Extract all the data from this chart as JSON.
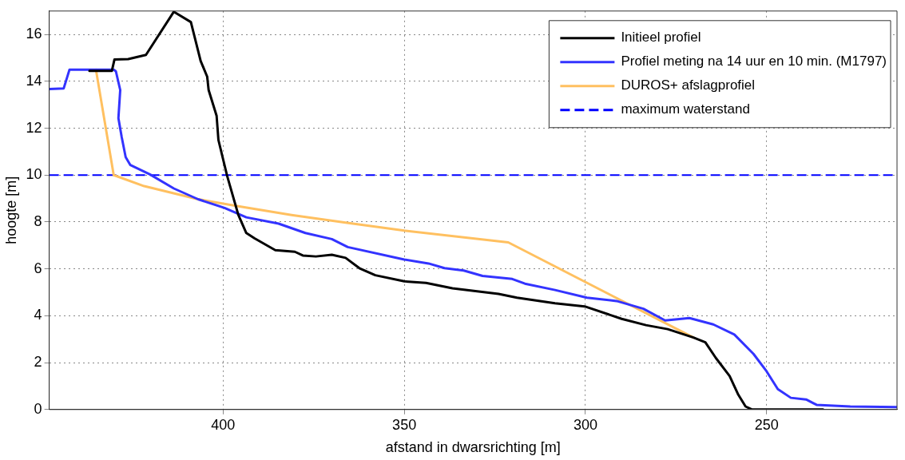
{
  "chart_data": {
    "type": "line",
    "xlabel": "afstand in dwarsrichting [m]",
    "ylabel": "hoogte [m]",
    "xlim": [
      448,
      214
    ],
    "xticks": [
      400,
      350,
      300,
      250
    ],
    "ylim": [
      0,
      17
    ],
    "yticks": [
      0,
      2,
      4,
      6,
      8,
      10,
      12,
      14,
      16
    ],
    "grid": true,
    "legend": "top right",
    "line_style": "solid",
    "marker": "none",
    "series": [
      {
        "name": "Initieel profiel",
        "color": "#000000",
        "x": [
          436.9,
          430.7,
          430,
          426.2,
          421.3,
          413.6,
          408.9,
          406.2,
          404.4,
          404,
          401.8,
          401.3,
          398.9,
          395.8,
          393.6,
          391.3,
          385.6,
          380.2,
          378,
          374.4,
          370,
          366.2,
          362.4,
          358,
          350,
          344,
          336.7,
          324,
          318.9,
          308.4,
          300.2,
          290,
          283.3,
          277.3,
          270.2,
          266.9,
          264,
          260.2,
          257.8,
          255.8,
          254,
          234.4
        ],
        "values": [
          14.45,
          14.45,
          14.93,
          14.95,
          15.13,
          16.97,
          16.53,
          14.87,
          14.2,
          13.63,
          12.53,
          11.5,
          9.97,
          8.3,
          7.53,
          7.3,
          6.8,
          6.73,
          6.57,
          6.53,
          6.6,
          6.47,
          6.03,
          5.73,
          5.47,
          5.4,
          5.17,
          4.93,
          4.77,
          4.53,
          4.4,
          3.87,
          3.6,
          3.43,
          3.07,
          2.87,
          2.2,
          1.43,
          0.63,
          0.13,
          0,
          0
        ]
      },
      {
        "name": "Profiel meting na 14 uur en 10 min. (M1797)",
        "color": "#3333ff",
        "x": [
          448,
          444,
          442.4,
          430.2,
          429.6,
          428.4,
          428.9,
          428,
          426.9,
          425.6,
          420.2,
          413.6,
          406.9,
          399.6,
          393.6,
          384.7,
          377.3,
          370,
          365.6,
          350,
          343.3,
          338.9,
          333.6,
          328.4,
          320.2,
          316.7,
          308.4,
          299.6,
          291.4,
          284,
          278,
          271.3,
          264.7,
          258.9,
          253.6,
          250,
          246.9,
          243.3,
          239.1,
          236.2,
          226.9,
          214
        ],
        "values": [
          13.67,
          13.7,
          14.5,
          14.5,
          14.43,
          13.63,
          12.43,
          11.63,
          10.77,
          10.43,
          10.03,
          9.43,
          8.97,
          8.6,
          8.2,
          7.93,
          7.53,
          7.27,
          6.93,
          6.4,
          6.23,
          6.03,
          5.93,
          5.7,
          5.57,
          5.37,
          5.1,
          4.77,
          4.63,
          4.3,
          3.8,
          3.9,
          3.63,
          3.2,
          2.37,
          1.63,
          0.87,
          0.5,
          0.43,
          0.2,
          0.13,
          0.1
        ]
      },
      {
        "name": "DUROS+ afslagprofiel",
        "color": "#ffc060",
        "x": [
          435.1,
          430.2,
          421.8,
          406.9,
          395.8,
          381.1,
          366.2,
          350,
          321.3,
          270.2
        ],
        "values": [
          14.5,
          10,
          9.53,
          8.97,
          8.67,
          8.3,
          7.97,
          7.63,
          7.13,
          3.07
        ]
      }
    ],
    "ref_lines": [
      {
        "axis": "y",
        "value": 10,
        "label": "maximum waterstand",
        "color": "#0000ff",
        "line_style": "dashed"
      }
    ]
  }
}
